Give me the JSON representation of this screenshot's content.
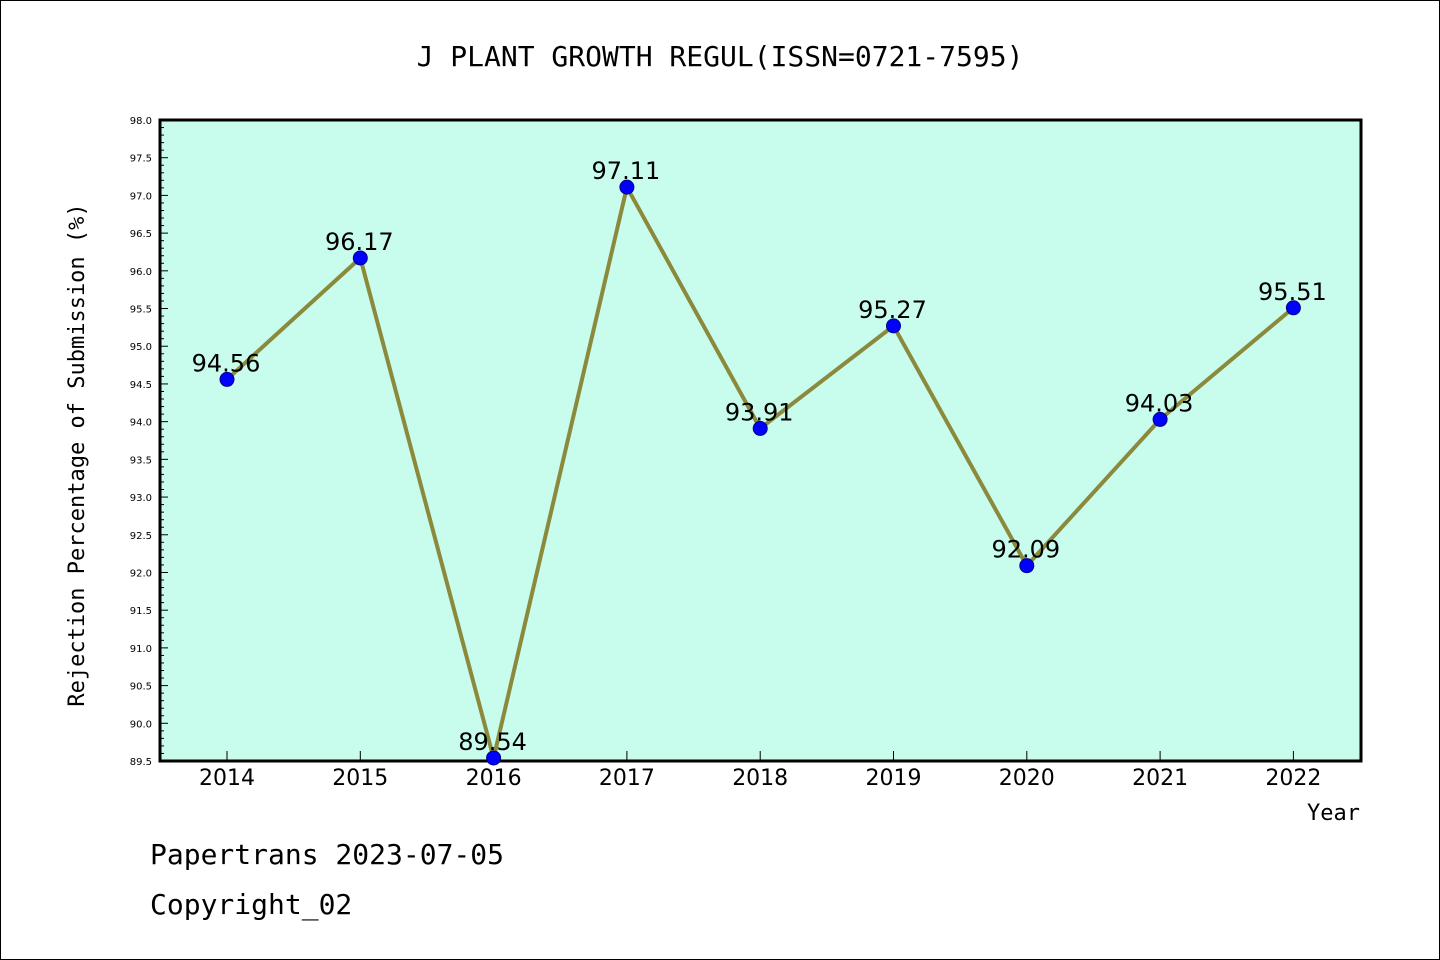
{
  "chart_data": {
    "type": "line",
    "title": "J PLANT GROWTH REGUL(ISSN=0721-7595)",
    "xlabel": "Year",
    "ylabel": "Rejection Percentage of Submission (%)",
    "categories": [
      "2014",
      "2015",
      "2016",
      "2017",
      "2018",
      "2019",
      "2020",
      "2021",
      "2022"
    ],
    "series": [
      {
        "values": [
          94.56,
          96.17,
          89.54,
          97.11,
          93.91,
          95.27,
          92.09,
          94.03,
          95.51
        ]
      }
    ],
    "data_labels": [
      "94.56",
      "96.17",
      "89.54",
      "97.11",
      "93.91",
      "95.27",
      "92.09",
      "94.03",
      "95.51"
    ],
    "ylim": [
      89.5,
      98.0
    ],
    "yticks": [
      "89.5",
      "90.0",
      "90.5",
      "91.0",
      "91.5",
      "92.0",
      "92.5",
      "93.0",
      "93.5",
      "94.0",
      "94.5",
      "95.0",
      "95.5",
      "96.0",
      "96.5",
      "97.0",
      "97.5",
      "98.0"
    ],
    "grid": false,
    "colors": {
      "plot_bg": "#c8fcec",
      "line": "#8b8a3c",
      "marker": "#0000ff"
    }
  },
  "footer": {
    "line1": "Papertrans 2023-07-05",
    "line2": "Copyright_02"
  }
}
